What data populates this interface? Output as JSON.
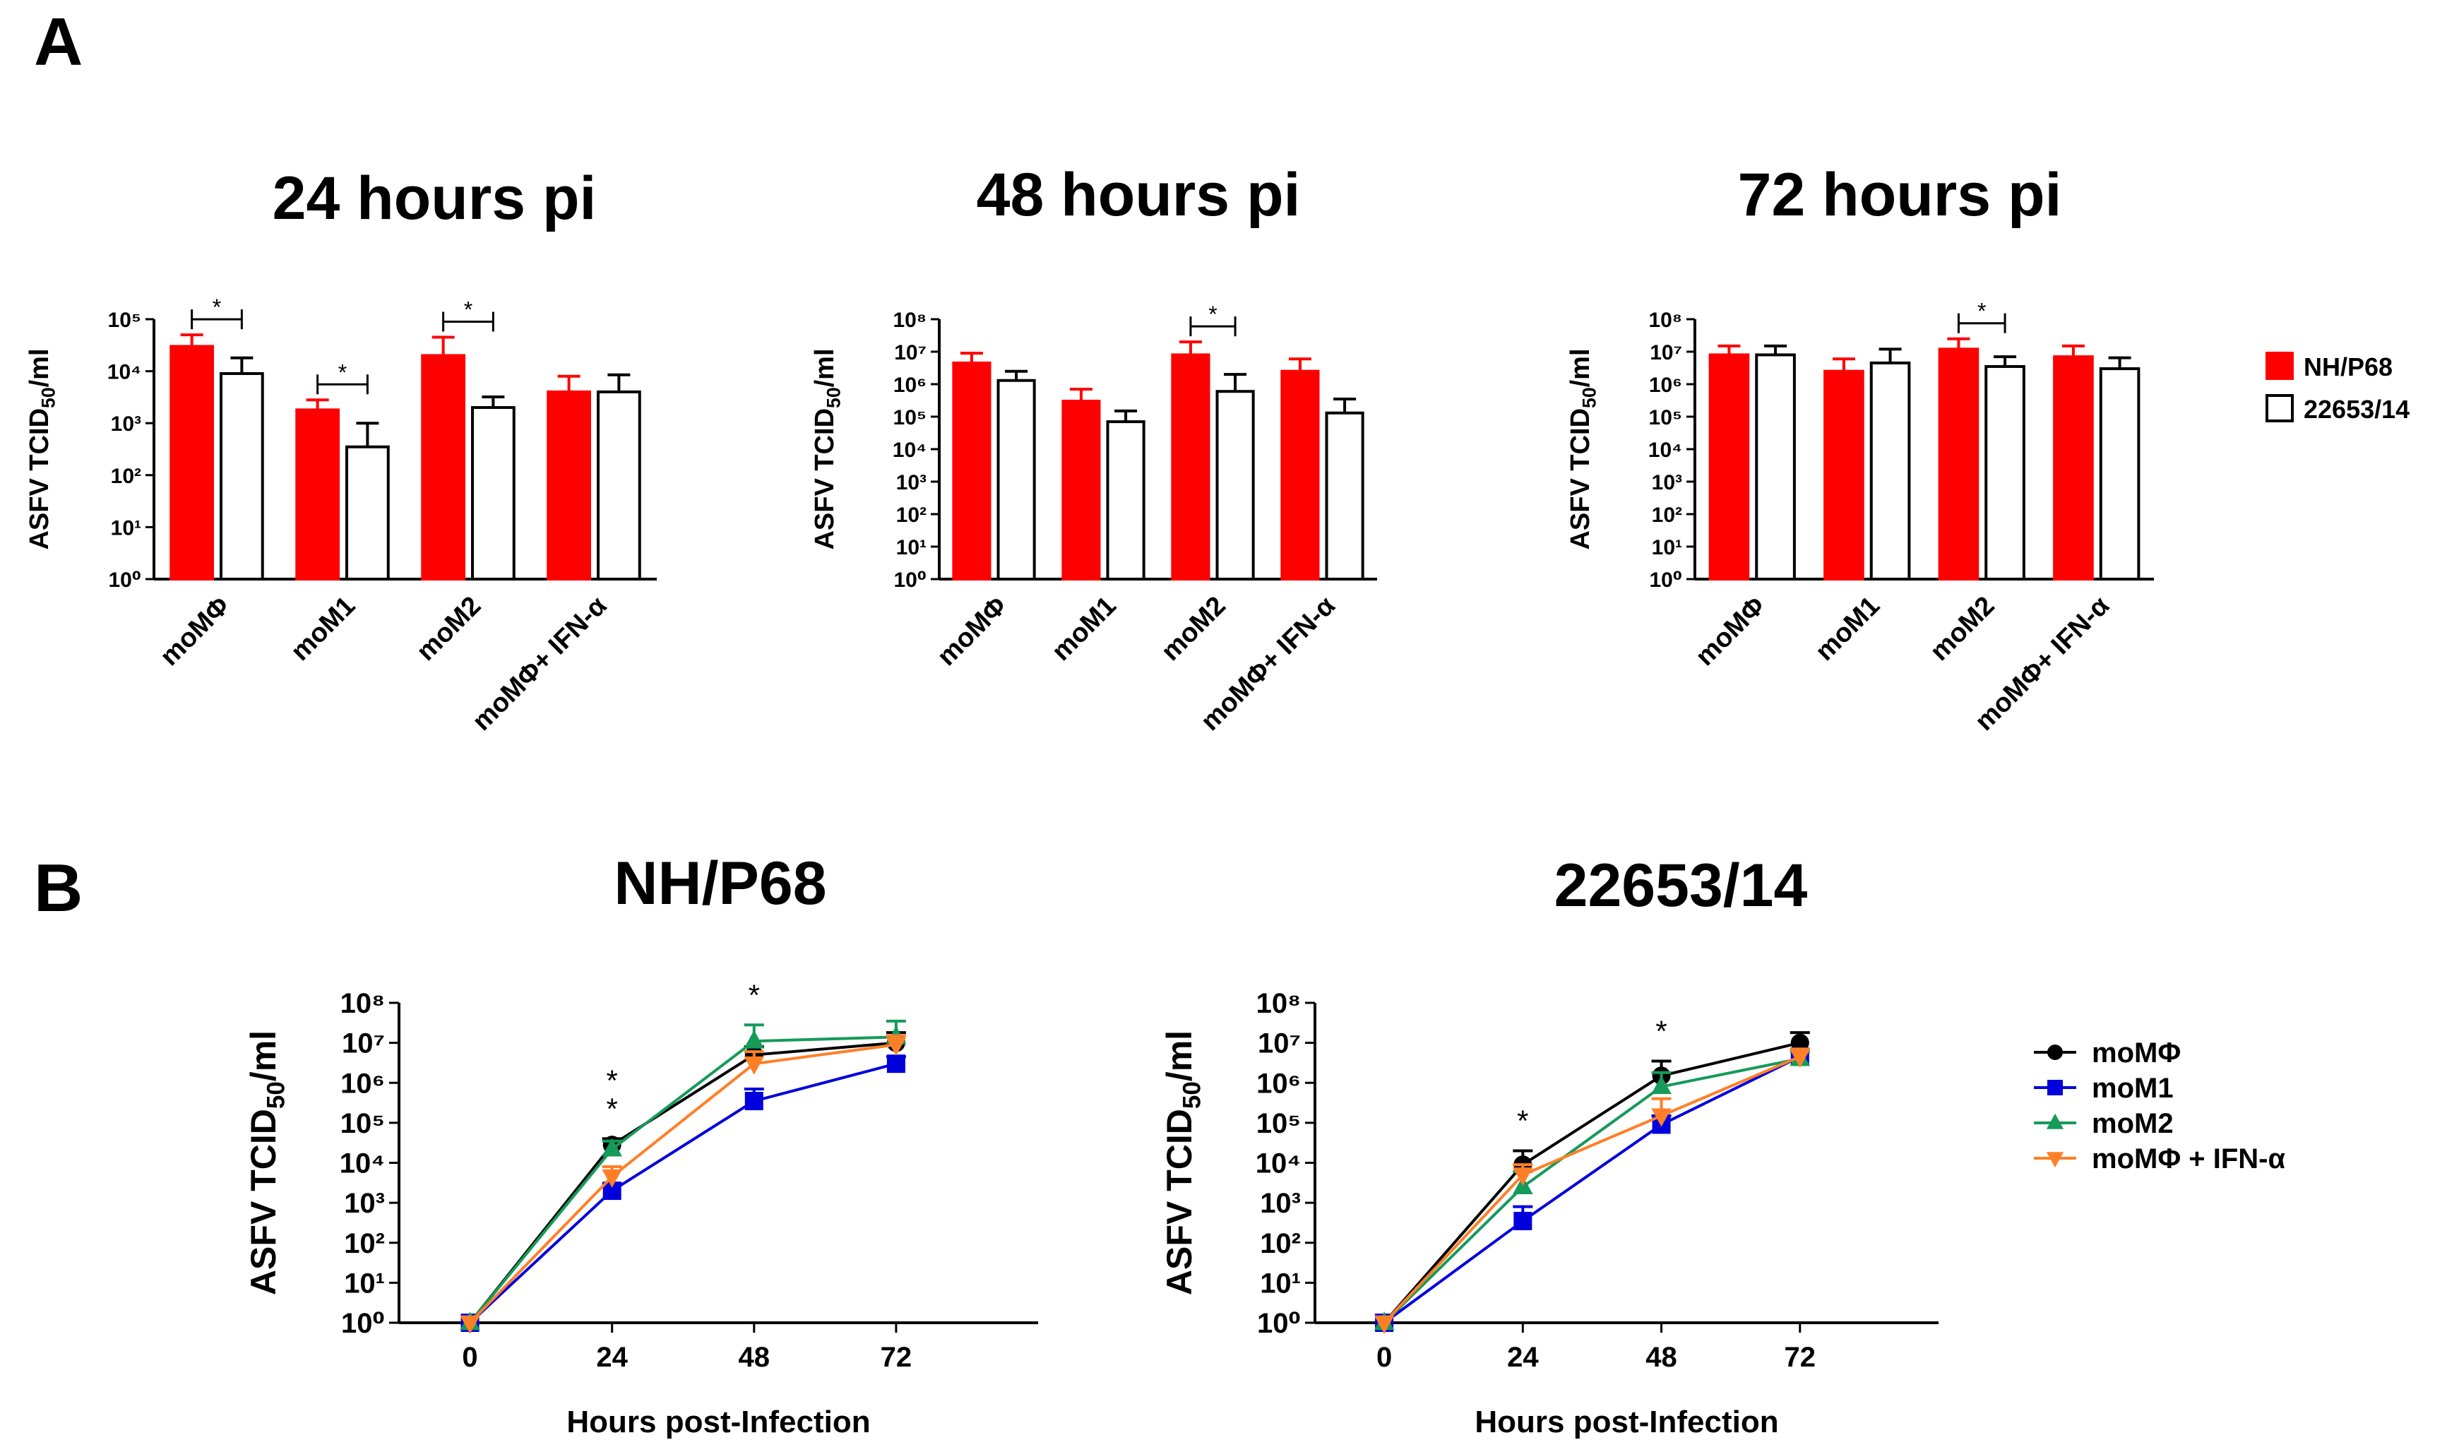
{
  "panel_labels": {
    "a": "A",
    "b": "B"
  },
  "colors": {
    "nh": "#ff0000",
    "g22653": "#ffffff",
    "outline": "#000000",
    "moMphi": "#000000",
    "moM1": "#0000dd",
    "moM2": "#159a5a",
    "moMphi_ifn": "#ff7f27"
  },
  "legend_a": [
    {
      "label": "NH/P68",
      "color": "#ff0000"
    },
    {
      "label": "22653/14",
      "color": "#ffffff"
    }
  ],
  "legend_b": [
    {
      "label": "moMΦ",
      "color": "#000000",
      "marker": "circle"
    },
    {
      "label": "moM1",
      "color": "#0000dd",
      "marker": "square"
    },
    {
      "label": "moM2",
      "color": "#159a5a",
      "marker": "triangle-up"
    },
    {
      "label": "moMΦ + IFN-α",
      "color": "#ff7f27",
      "marker": "triangle-down"
    }
  ],
  "chart_data": [
    {
      "type": "bar",
      "title": "24 hours pi",
      "ylabel": "ASFV TCID",
      "ylabel_sub": "50",
      "ylabel_tail": "/ml",
      "yscale": "log10",
      "ylim_exp": [
        0,
        5
      ],
      "categories": [
        "moMΦ",
        "moM1",
        "moM2",
        "moMΦ+ IFN-α"
      ],
      "series": [
        {
          "name": "NH/P68",
          "values": [
            30000,
            1800,
            20000,
            4000
          ],
          "errors": [
            50000,
            2800,
            45000,
            8000
          ]
        },
        {
          "name": "22653/14",
          "values": [
            9000,
            350,
            2000,
            4000
          ],
          "errors": [
            18000,
            1000,
            3200,
            8500
          ]
        }
      ],
      "significance": [
        {
          "category": 0,
          "label": "*"
        },
        {
          "category": 1,
          "label": "*"
        },
        {
          "category": 2,
          "label": "*"
        }
      ]
    },
    {
      "type": "bar",
      "title": "48 hours pi",
      "ylabel": "ASFV TCID",
      "ylabel_sub": "50",
      "ylabel_tail": "/ml",
      "yscale": "log10",
      "ylim_exp": [
        0,
        8
      ],
      "categories": [
        "moMΦ",
        "moM1",
        "moM2",
        "moMΦ+ IFN-α"
      ],
      "series": [
        {
          "name": "NH/P68",
          "values": [
            4500000,
            300000,
            8000000,
            2500000
          ],
          "errors": [
            9000000,
            700000,
            20000000,
            6000000
          ]
        },
        {
          "name": "22653/14",
          "values": [
            1300000,
            70000,
            600000,
            130000
          ],
          "errors": [
            2500000,
            150000,
            2000000,
            350000
          ]
        }
      ],
      "significance": [
        {
          "category": 2,
          "label": "*"
        }
      ]
    },
    {
      "type": "bar",
      "title": "72 hours pi",
      "ylabel": "ASFV TCID",
      "ylabel_sub": "50",
      "ylabel_tail": "/ml",
      "yscale": "log10",
      "ylim_exp": [
        0,
        8
      ],
      "categories": [
        "moMΦ",
        "moM1",
        "moM2",
        "moMΦ+ IFN-α"
      ],
      "series": [
        {
          "name": "NH/P68",
          "values": [
            8000000,
            2500000,
            12000000,
            7000000
          ],
          "errors": [
            15000000,
            6000000,
            25000000,
            15000000
          ]
        },
        {
          "name": "22653/14",
          "values": [
            8000000,
            4500000,
            3500000,
            3000000
          ],
          "errors": [
            15000000,
            12000000,
            7000000,
            6500000
          ]
        }
      ],
      "significance": [
        {
          "category": 2,
          "label": "*"
        }
      ]
    },
    {
      "type": "line",
      "title": "NH/P68",
      "xlabel": "Hours post-Infection",
      "ylabel": "ASFV TCID",
      "ylabel_sub": "50",
      "ylabel_tail": "/ml",
      "yscale": "log10",
      "ylim_exp": [
        0,
        8
      ],
      "xlim": [
        -12,
        96
      ],
      "x": [
        0,
        24,
        48,
        72
      ],
      "series": [
        {
          "name": "moMΦ",
          "values": [
            1,
            28000,
            5000000,
            10000000
          ],
          "errors": [
            1,
            40000,
            8000000,
            18000000
          ]
        },
        {
          "name": "moM1",
          "values": [
            1,
            2000,
            350000,
            3000000
          ],
          "errors": [
            1,
            3000,
            700000,
            4500000
          ]
        },
        {
          "name": "moM2",
          "values": [
            1,
            22000,
            11000000,
            14000000
          ],
          "errors": [
            1,
            35000,
            28000000,
            35000000
          ]
        },
        {
          "name": "moMΦ + IFN-α",
          "values": [
            1,
            4500,
            3000000,
            9000000
          ],
          "errors": [
            1,
            8000,
            6000000,
            15000000
          ]
        }
      ],
      "significance": [
        {
          "x": 24,
          "label": "*\n*"
        },
        {
          "x": 48,
          "label": "*"
        }
      ]
    },
    {
      "type": "line",
      "title": "22653/14",
      "xlabel": "Hours post-Infection",
      "ylabel": "ASFV TCID",
      "ylabel_sub": "50",
      "ylabel_tail": "/ml",
      "yscale": "log10",
      "ylim_exp": [
        0,
        8
      ],
      "xlim": [
        -12,
        96
      ],
      "x": [
        0,
        24,
        48,
        72
      ],
      "series": [
        {
          "name": "moMΦ",
          "values": [
            1,
            9000,
            1500000,
            10000000
          ],
          "errors": [
            1,
            20000,
            3500000,
            18000000
          ]
        },
        {
          "name": "moM1",
          "values": [
            1,
            350,
            90000,
            4500000
          ],
          "errors": [
            1,
            800,
            150000,
            7000000
          ]
        },
        {
          "name": "moM2",
          "values": [
            1,
            2500,
            800000,
            4000000
          ],
          "errors": [
            1,
            6000,
            1800000,
            6000000
          ]
        },
        {
          "name": "moMΦ + IFN-α",
          "values": [
            1,
            5000,
            150000,
            4500000
          ],
          "errors": [
            1,
            9000,
            400000,
            7000000
          ]
        }
      ],
      "significance": [
        {
          "x": 24,
          "label": "*"
        },
        {
          "x": 48,
          "label": "*"
        }
      ]
    }
  ]
}
